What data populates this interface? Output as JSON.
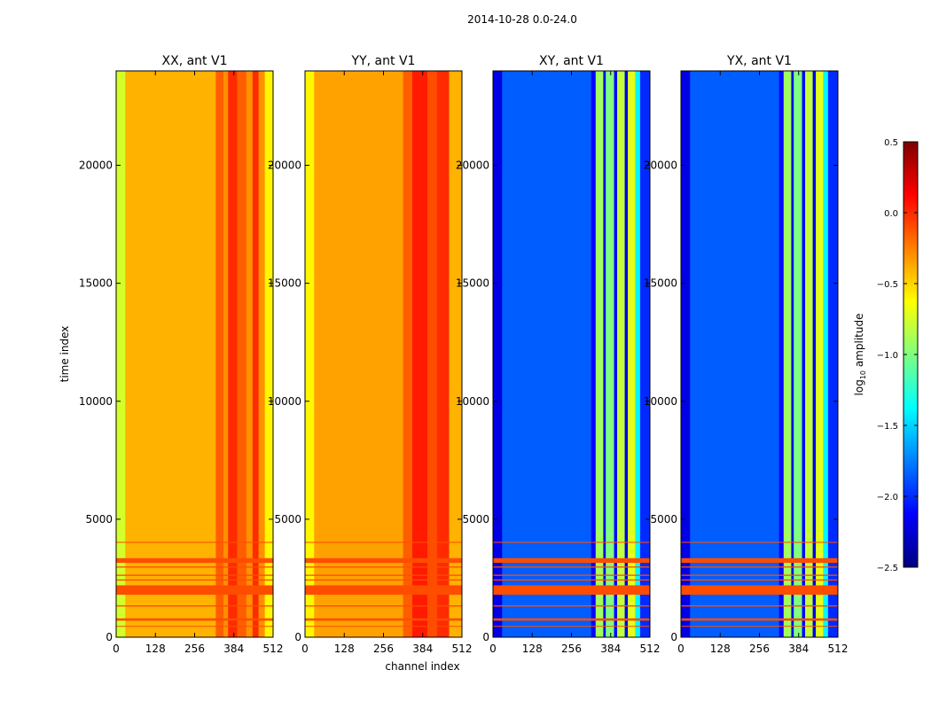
{
  "figure": {
    "suptitle": "2014-10-28 0.0-24.0"
  },
  "chart_data": [
    {
      "type": "heatmap",
      "title": "XX, ant V1",
      "xlabel": "",
      "ylabel": "time index",
      "xlim": [
        0,
        512
      ],
      "ylim": [
        0,
        24000
      ],
      "xticks": [
        0,
        128,
        256,
        384,
        512
      ],
      "yticks": [
        0,
        5000,
        10000,
        15000,
        20000
      ],
      "xtick_labels": [
        "0",
        "128",
        "256",
        "384",
        "512"
      ],
      "ytick_labels": [
        "0",
        "5000",
        "10000",
        "15000",
        "20000"
      ],
      "base_value": -0.4,
      "bands": [
        {
          "x0": 0,
          "x1": 30,
          "value": -0.75
        },
        {
          "x0": 30,
          "x1": 325,
          "value": -0.4
        },
        {
          "x0": 325,
          "x1": 350,
          "value": -0.15
        },
        {
          "x0": 350,
          "x1": 365,
          "value": -0.3
        },
        {
          "x0": 365,
          "x1": 395,
          "value": 0.0
        },
        {
          "x0": 395,
          "x1": 425,
          "value": -0.15
        },
        {
          "x0": 425,
          "x1": 445,
          "value": -0.3
        },
        {
          "x0": 445,
          "x1": 465,
          "value": 0.0
        },
        {
          "x0": 465,
          "x1": 485,
          "value": -0.3
        },
        {
          "x0": 485,
          "x1": 512,
          "value": -0.6
        }
      ]
    },
    {
      "type": "heatmap",
      "title": "YY, ant V1",
      "xlabel": "channel index",
      "ylabel": "",
      "xlim": [
        0,
        512
      ],
      "ylim": [
        0,
        24000
      ],
      "xticks": [
        0,
        128,
        256,
        384,
        512
      ],
      "yticks": [
        0,
        5000,
        10000,
        15000,
        20000
      ],
      "xtick_labels": [
        "0",
        "128",
        "256",
        "384",
        "512"
      ],
      "ytick_labels": [
        "0",
        "5000",
        "10000",
        "15000",
        "20000"
      ],
      "base_value": -0.35,
      "bands": [
        {
          "x0": 0,
          "x1": 30,
          "value": -0.6
        },
        {
          "x0": 30,
          "x1": 320,
          "value": -0.35
        },
        {
          "x0": 320,
          "x1": 350,
          "value": -0.15
        },
        {
          "x0": 350,
          "x1": 400,
          "value": 0.05
        },
        {
          "x0": 400,
          "x1": 430,
          "value": -0.1
        },
        {
          "x0": 430,
          "x1": 470,
          "value": 0.0
        },
        {
          "x0": 470,
          "x1": 512,
          "value": -0.4
        }
      ]
    },
    {
      "type": "heatmap",
      "title": "XY, ant V1",
      "xlabel": "",
      "ylabel": "",
      "xlim": [
        0,
        512
      ],
      "ylim": [
        0,
        24000
      ],
      "xticks": [
        0,
        128,
        256,
        384,
        512
      ],
      "yticks": [
        0,
        5000,
        10000,
        15000,
        20000
      ],
      "xtick_labels": [
        "0",
        "128",
        "256",
        "384",
        "512"
      ],
      "ytick_labels": [
        "0",
        "5000",
        "10000",
        "15000",
        "20000"
      ],
      "base_value": -1.9,
      "bands": [
        {
          "x0": 0,
          "x1": 30,
          "value": -2.2
        },
        {
          "x0": 30,
          "x1": 320,
          "value": -1.85
        },
        {
          "x0": 320,
          "x1": 335,
          "value": -2.1
        },
        {
          "x0": 335,
          "x1": 360,
          "value": -0.9
        },
        {
          "x0": 360,
          "x1": 368,
          "value": -2.2
        },
        {
          "x0": 368,
          "x1": 395,
          "value": -1.0
        },
        {
          "x0": 395,
          "x1": 405,
          "value": -2.1
        },
        {
          "x0": 405,
          "x1": 430,
          "value": -0.8
        },
        {
          "x0": 430,
          "x1": 440,
          "value": -2.2
        },
        {
          "x0": 440,
          "x1": 465,
          "value": -0.7
        },
        {
          "x0": 465,
          "x1": 480,
          "value": -1.4
        },
        {
          "x0": 480,
          "x1": 512,
          "value": -2.0
        }
      ]
    },
    {
      "type": "heatmap",
      "title": "YX, ant V1",
      "xlabel": "",
      "ylabel": "",
      "xlim": [
        0,
        512
      ],
      "ylim": [
        0,
        24000
      ],
      "xticks": [
        0,
        128,
        256,
        384,
        512
      ],
      "yticks": [
        0,
        5000,
        10000,
        15000,
        20000
      ],
      "xtick_labels": [
        "0",
        "128",
        "256",
        "384",
        "512"
      ],
      "ytick_labels": [
        "0",
        "5000",
        "10000",
        "15000",
        "20000"
      ],
      "base_value": -1.9,
      "bands": [
        {
          "x0": 0,
          "x1": 30,
          "value": -2.2
        },
        {
          "x0": 30,
          "x1": 320,
          "value": -1.85
        },
        {
          "x0": 320,
          "x1": 335,
          "value": -2.1
        },
        {
          "x0": 335,
          "x1": 360,
          "value": -0.9
        },
        {
          "x0": 360,
          "x1": 368,
          "value": -2.2
        },
        {
          "x0": 368,
          "x1": 395,
          "value": -1.0
        },
        {
          "x0": 395,
          "x1": 405,
          "value": -2.1
        },
        {
          "x0": 405,
          "x1": 430,
          "value": -0.8
        },
        {
          "x0": 430,
          "x1": 440,
          "value": -2.2
        },
        {
          "x0": 440,
          "x1": 465,
          "value": -0.7
        },
        {
          "x0": 465,
          "x1": 480,
          "value": -1.4
        },
        {
          "x0": 480,
          "x1": 512,
          "value": -2.0
        }
      ]
    }
  ],
  "flagged_rows": {
    "value": -0.1,
    "ranges": [
      [
        1800,
        2200
      ],
      [
        3150,
        3350
      ],
      [
        700,
        800
      ],
      [
        2950,
        3000
      ],
      [
        2600,
        2650
      ],
      [
        2400,
        2450
      ],
      [
        1300,
        1350
      ],
      [
        4000,
        4040
      ],
      [
        450,
        480
      ]
    ]
  },
  "colorbar": {
    "label": "log10 amplitude",
    "label_main": "log",
    "label_sub": "10",
    "label_rest": " amplitude",
    "vmin": -2.5,
    "vmax": 0.5,
    "ticks": [
      0.5,
      0.0,
      -0.5,
      -1.0,
      -1.5,
      -2.0,
      -2.5
    ],
    "tick_labels": [
      "0.5",
      "0.0",
      "−0.5",
      "−1.0",
      "−1.5",
      "−2.0",
      "−2.5"
    ],
    "colormap": "jet"
  },
  "colors": {
    "flag": "#ff4a00",
    "axes": "#000000"
  }
}
